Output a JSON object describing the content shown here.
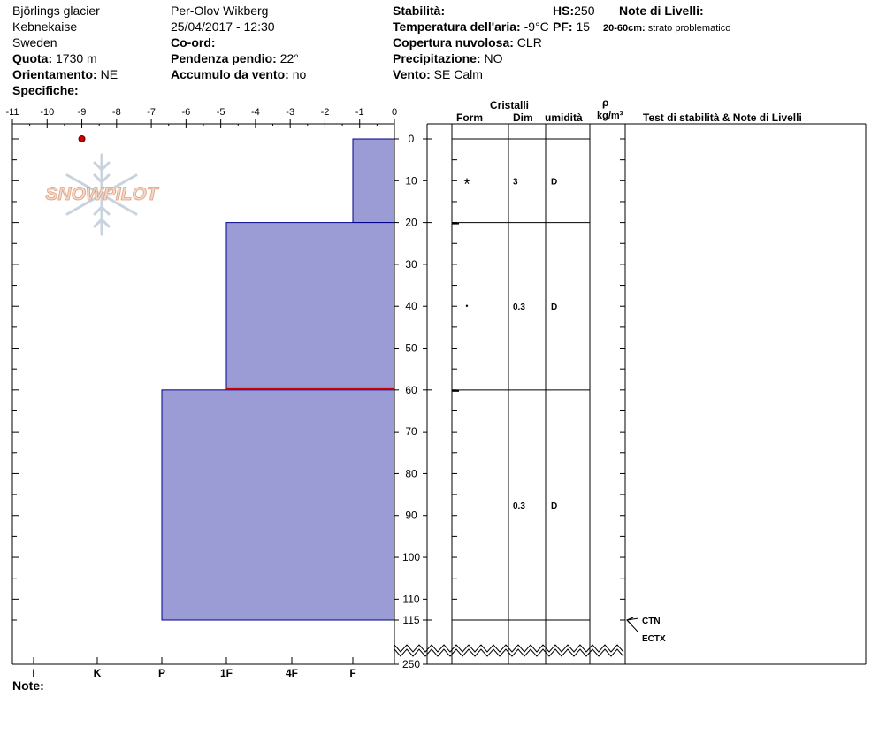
{
  "header": {
    "location": "Björlings glacier",
    "area": "Kebnekaise",
    "country": "Sweden",
    "quota_label": "Quota:",
    "quota_value": "1730 m",
    "orient_label": "Orientamento:",
    "orient_value": "NE",
    "specifiche_label": "Specifiche:",
    "observer": "Per-Olov Wikberg",
    "datetime": "25/04/2017 - 12:30",
    "coord_label": "Co-ord:",
    "slope_label": "Pendenza pendio:",
    "slope_value": "22°",
    "wind_load_label": "Accumulo da vento:",
    "wind_load_value": "no",
    "stability_label": "Stabilità:",
    "air_temp_label": "Temperatura dell'aria:",
    "air_temp_value": "-9°C",
    "cloud_label": "Copertura nuvolosa:",
    "cloud_value": "CLR",
    "precip_label": "Precipitazione:",
    "precip_value": "NO",
    "wind_label": "Vento:",
    "wind_value": "SE  Calm",
    "hs_label": "HS:",
    "hs_value": "250",
    "pf_label": "PF:",
    "pf_value": "15",
    "layer_notes_label": "Note di Livelli:",
    "layer_note_range": "20-60cm:",
    "layer_note_text": "strato problematico"
  },
  "columns": {
    "cristalli": "Cristalli",
    "form": "Form",
    "dim": "Dim",
    "umidita": "umidità",
    "rho": "ρ",
    "density_unit": "kg/m³",
    "tests": "Test di stabilità & Note di Livelli"
  },
  "note_label": "Note:",
  "logo_text": "SNOWPILOT",
  "chart_data": {
    "type": "snow-profile",
    "temp_axis_ticks": [
      "-11",
      "-10",
      "-9",
      "-8",
      "-7",
      "-6",
      "-5",
      "-4",
      "-3",
      "-2",
      "-1",
      "0"
    ],
    "temp_range": [
      -11,
      0
    ],
    "depth_ticks": [
      "0",
      "10",
      "20",
      "30",
      "40",
      "50",
      "60",
      "70",
      "80",
      "90",
      "100",
      "110",
      "115",
      "250"
    ],
    "depth_range": [
      0,
      115
    ],
    "total_depth": 250,
    "hardness_scale": [
      "I",
      "K",
      "P",
      "1F",
      "4F",
      "F"
    ],
    "hardness_values": {
      "F": 1,
      "4F": 2,
      "1F": 3,
      "P": 4,
      "K": 5,
      "I": 6
    },
    "air_temp_point": {
      "temp": -9,
      "depth": 0
    },
    "layers": [
      {
        "top": 0,
        "bottom": 20,
        "hardness": "F",
        "form": "*",
        "dim": "3",
        "wetness": "D"
      },
      {
        "top": 20,
        "bottom": 60,
        "hardness": "1F",
        "form": "•",
        "dim": "0.3",
        "wetness": "D"
      },
      {
        "top": 60,
        "bottom": 115,
        "hardness": "P",
        "form": "",
        "dim": "0.3",
        "wetness": "D"
      }
    ],
    "problem_layer_depth": 60,
    "tests": [
      {
        "label": "CTN",
        "depth": 115
      },
      {
        "label": "ECTX",
        "depth": 115
      }
    ],
    "colors": {
      "layer_fill": "#9b9bd6",
      "layer_stroke": "#00008b",
      "problem_line": "#cc0000",
      "air_temp": "#cc0000"
    }
  }
}
